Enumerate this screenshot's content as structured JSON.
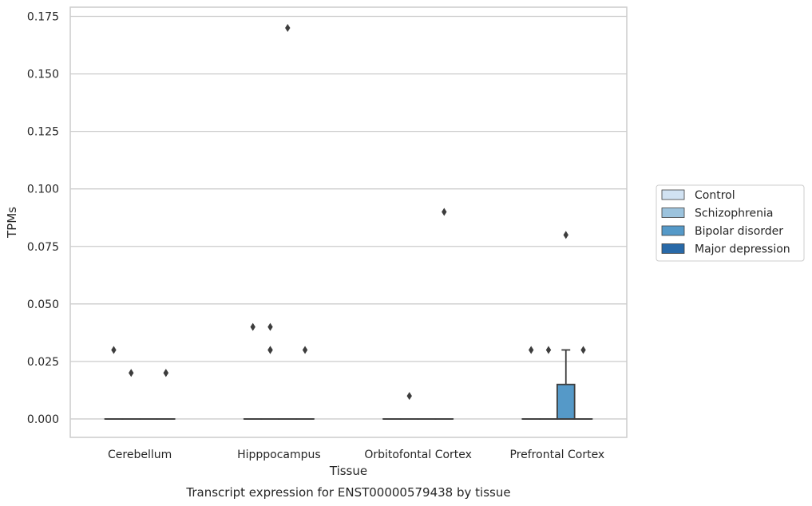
{
  "chart_data": {
    "type": "box",
    "title": "",
    "caption": "Transcript expression for ENST00000579438 by tissue",
    "xlabel": "Tissue",
    "ylabel": "TPMs",
    "ylim": [
      -0.008,
      0.179
    ],
    "yticks": [
      "0.000",
      "0.025",
      "0.050",
      "0.075",
      "0.100",
      "0.125",
      "0.150",
      "0.175"
    ],
    "grid": "horizontal",
    "legend_position": "right",
    "categories": [
      "Cerebellum",
      "Hipppocampus",
      "Orbitofontal Cortex",
      "Prefrontal Cortex"
    ],
    "series": [
      {
        "name": "Control",
        "color": "#d1e2f2",
        "boxes": [
          {
            "q1": 0,
            "median": 0,
            "q3": 0,
            "whisker_low": 0,
            "whisker_high": 0,
            "outliers": [
              0.03
            ]
          },
          {
            "q1": 0,
            "median": 0,
            "q3": 0,
            "whisker_low": 0,
            "whisker_high": 0,
            "outliers": [
              0.04
            ]
          },
          {
            "q1": 0,
            "median": 0,
            "q3": 0,
            "whisker_low": 0,
            "whisker_high": 0,
            "outliers": []
          },
          {
            "q1": 0,
            "median": 0,
            "q3": 0,
            "whisker_low": 0,
            "whisker_high": 0,
            "outliers": [
              0.03
            ]
          }
        ]
      },
      {
        "name": "Schizophrenia",
        "color": "#9cc3dd",
        "boxes": [
          {
            "q1": 0,
            "median": 0,
            "q3": 0,
            "whisker_low": 0,
            "whisker_high": 0,
            "outliers": [
              0.02
            ]
          },
          {
            "q1": 0,
            "median": 0,
            "q3": 0,
            "whisker_low": 0,
            "whisker_high": 0,
            "outliers": [
              0.04,
              0.03,
              0.03
            ]
          },
          {
            "q1": 0,
            "median": 0,
            "q3": 0,
            "whisker_low": 0,
            "whisker_high": 0,
            "outliers": [
              0.01
            ]
          },
          {
            "q1": 0,
            "median": 0,
            "q3": 0,
            "whisker_low": 0,
            "whisker_high": 0,
            "outliers": [
              0.03
            ]
          }
        ]
      },
      {
        "name": "Bipolar disorder",
        "color": "#5599c8",
        "boxes": [
          {
            "q1": 0,
            "median": 0,
            "q3": 0,
            "whisker_low": 0,
            "whisker_high": 0,
            "outliers": []
          },
          {
            "q1": 0,
            "median": 0,
            "q3": 0,
            "whisker_low": 0,
            "whisker_high": 0,
            "outliers": [
              0.17
            ]
          },
          {
            "q1": 0,
            "median": 0,
            "q3": 0,
            "whisker_low": 0,
            "whisker_high": 0,
            "outliers": []
          },
          {
            "q1": 0,
            "median": 0,
            "q3": 0.015,
            "whisker_low": 0,
            "whisker_high": 0.03,
            "outliers": [
              0.08
            ]
          }
        ]
      },
      {
        "name": "Major depression",
        "color": "#2869a8",
        "boxes": [
          {
            "q1": 0,
            "median": 0,
            "q3": 0,
            "whisker_low": 0,
            "whisker_high": 0,
            "outliers": [
              0.02,
              0.02
            ]
          },
          {
            "q1": 0,
            "median": 0,
            "q3": 0,
            "whisker_low": 0,
            "whisker_high": 0,
            "outliers": [
              0.03
            ]
          },
          {
            "q1": 0,
            "median": 0,
            "q3": 0,
            "whisker_low": 0,
            "whisker_high": 0,
            "outliers": [
              0.09
            ]
          },
          {
            "q1": 0,
            "median": 0,
            "q3": 0,
            "whisker_low": 0,
            "whisker_high": 0,
            "outliers": [
              0.03
            ]
          }
        ]
      }
    ]
  }
}
